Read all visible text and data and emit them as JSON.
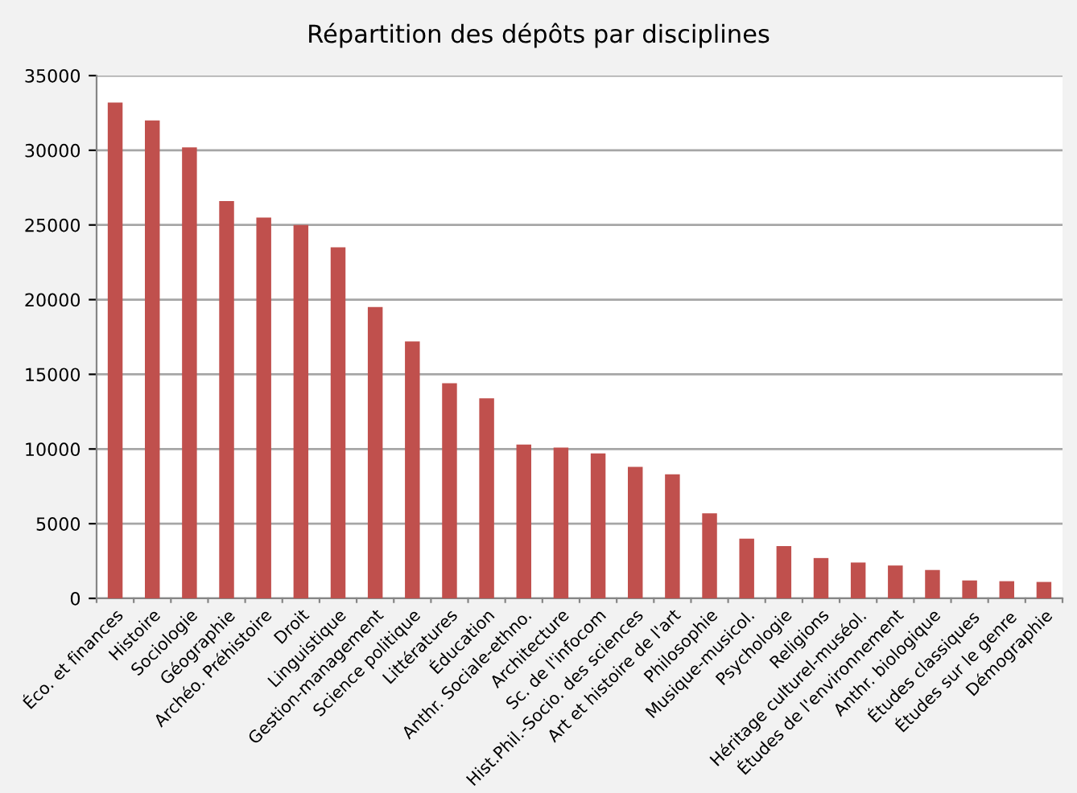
{
  "chart_data": {
    "type": "bar",
    "title": "Répartition des dépôts par disciplines",
    "categories": [
      "Éco. et finances",
      "Histoire",
      "Sociologie",
      "Géographie",
      "Archéo. Préhistoire",
      "Droit",
      "Linguistique",
      "Gestion-management",
      "Science politique",
      "Littératures",
      "Éducation",
      "Anthr. Sociale-ethno.",
      "Architecture",
      "Sc. de l'infocom",
      "Hist.Phil.-Socio. des sciences",
      "Art et histoire de l'art",
      "Philosophie",
      "Musique-musicol.",
      "Psychologie",
      "Religions",
      "Héritage culturel-muséol.",
      "Études de l'environnement",
      "Anthr. biologique",
      "Études classiques",
      "Études sur le genre",
      "Démographie"
    ],
    "values": [
      33200,
      32000,
      30200,
      26600,
      25500,
      25000,
      23500,
      19500,
      17200,
      14400,
      13400,
      10300,
      10100,
      9700,
      8800,
      8300,
      5700,
      4000,
      3500,
      2700,
      2400,
      2200,
      1900,
      1200,
      1150,
      1100
    ],
    "color": "#c0504d",
    "ylim": [
      0,
      35000
    ],
    "yticks": [
      0,
      5000,
      10000,
      15000,
      20000,
      25000,
      30000,
      35000
    ],
    "grid": "y",
    "legend": false
  }
}
